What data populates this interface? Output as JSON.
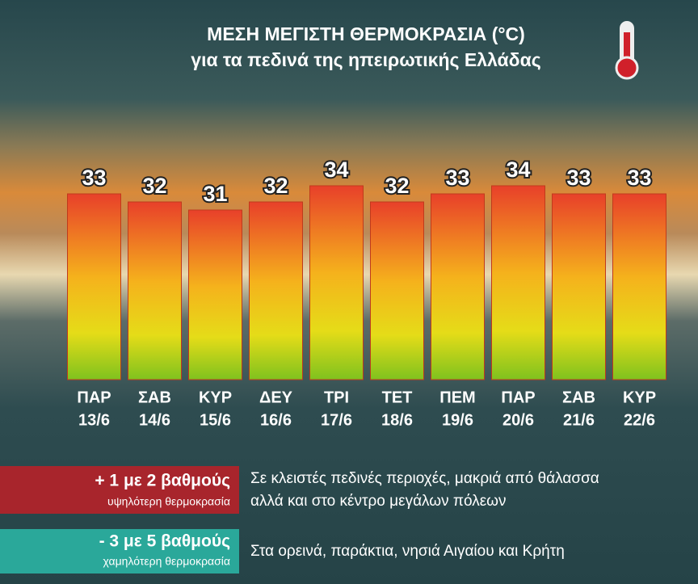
{
  "chart_data": {
    "type": "bar",
    "title": "ΜΕΣΗ ΜΕΓΙΣΤΗ ΘΕΡΜΟΚΡΑΣΙΑ (°C)",
    "subtitle": "για τα πεδινά της ηπειρωτικής Ελλάδας",
    "categories": [
      "ΠΑΡ",
      "ΣΑΒ",
      "ΚΥΡ",
      "ΔΕΥ",
      "ΤΡΙ",
      "ΤΕΤ",
      "ΠΕΜ",
      "ΠΑΡ",
      "ΣΑΒ",
      "ΚΥΡ"
    ],
    "dates": [
      "13/6",
      "14/6",
      "15/6",
      "16/6",
      "17/6",
      "18/6",
      "19/6",
      "20/6",
      "21/6",
      "22/6"
    ],
    "values": [
      33,
      32,
      31,
      32,
      34,
      32,
      33,
      34,
      33,
      33
    ],
    "ylim": [
      10,
      35
    ]
  },
  "notes": [
    {
      "headline": "+ 1 με 2 βαθμούς",
      "subline": "υψηλότερη θερμοκρασία",
      "text": [
        "Σε κλειστές πεδινές περιοχές, μακριά από θάλασσα",
        "αλλά και στο κέντρο μεγάλων πόλεων"
      ]
    },
    {
      "headline": "- 3 με 5 βαθμούς",
      "subline": "χαμηλότερη θερμοκρασία",
      "text": [
        "Στα ορεινά, παράκτια, νησιά Αιγαίου και Κρήτη"
      ]
    }
  ]
}
